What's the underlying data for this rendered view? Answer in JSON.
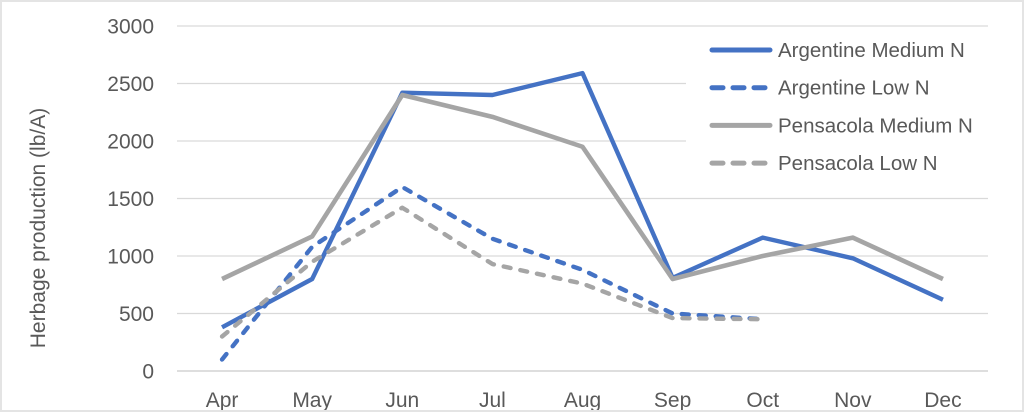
{
  "chart_data": {
    "type": "line",
    "title": "",
    "ylabel": "Herbage production (lb/A)",
    "xlabel": "",
    "ylim": [
      0,
      3000
    ],
    "ytick_step": 500,
    "grid": "horizontal",
    "legend_position": "top-right",
    "categories": [
      "Apr",
      "May",
      "Jun",
      "Jul",
      "Aug",
      "Sep",
      "Oct",
      "Nov",
      "Dec"
    ],
    "series": [
      {
        "name": "Argentine Medium N",
        "color": "#4472C4",
        "style": "solid",
        "values": [
          380,
          800,
          2420,
          2400,
          2590,
          810,
          1160,
          980,
          620
        ]
      },
      {
        "name": "Argentine Low N",
        "color": "#4472C4",
        "style": "dashed",
        "values": [
          100,
          1080,
          1600,
          1150,
          880,
          500,
          450,
          null,
          null
        ]
      },
      {
        "name": "Pensacola Medium N",
        "color": "#A5A5A5",
        "style": "solid",
        "values": [
          800,
          1170,
          2400,
          2210,
          1950,
          800,
          1000,
          1160,
          800
        ]
      },
      {
        "name": "Pensacola Low N",
        "color": "#A5A5A5",
        "style": "dashed",
        "values": [
          300,
          950,
          1420,
          930,
          760,
          460,
          450,
          null,
          null
        ]
      }
    ],
    "colors": {
      "axis_text": "#595959",
      "gridline": "#D9D9D9",
      "axis_line": "#CBCBCB",
      "background": "#FFFFFF",
      "accent_blue": "#4472C4",
      "accent_gray": "#A5A5A5"
    }
  }
}
